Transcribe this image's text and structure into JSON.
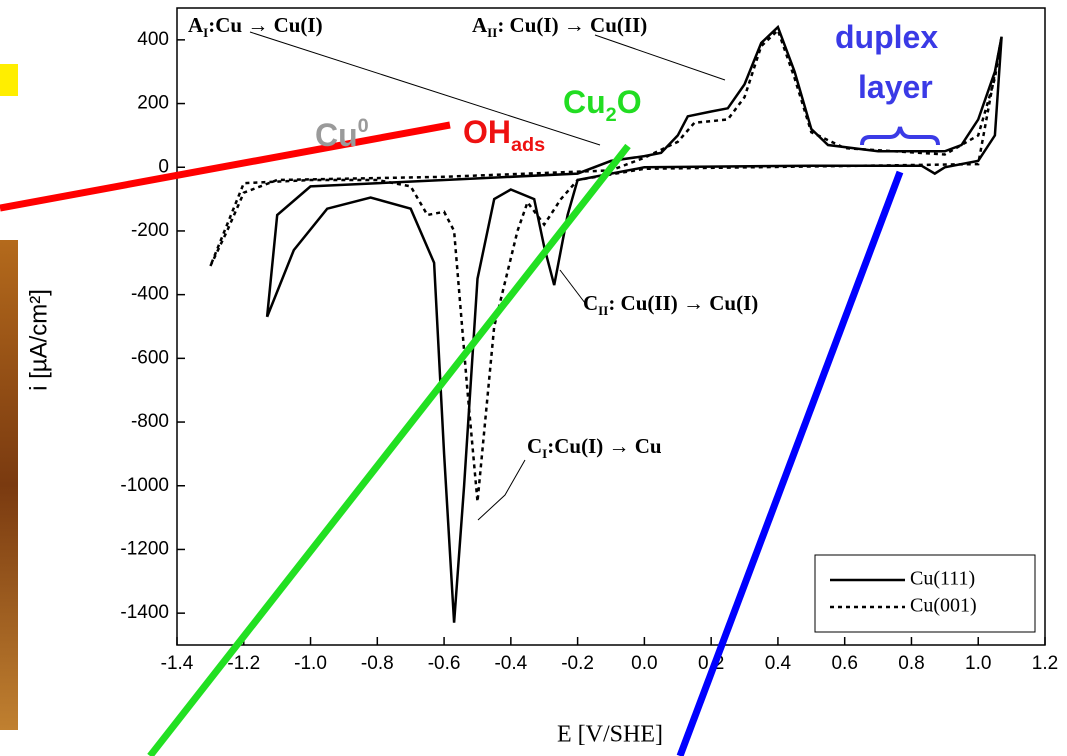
{
  "chart_data": {
    "type": "line",
    "x_label": "E [V/SHE]",
    "y_label": "i [µA/cm²]",
    "xlim": [
      -1.4,
      1.2
    ],
    "ylim": [
      -1500,
      500
    ],
    "xticks": [
      -1.4,
      -1.2,
      {
        "value": -1.0,
        "label": "-1.0"
      },
      -0.8,
      -0.6,
      -0.4,
      -0.2,
      {
        "value": 0,
        "label": "0.0"
      },
      0.2,
      0.4,
      0.6,
      0.8,
      {
        "value": 1.0,
        "label": "1.0"
      },
      1.2
    ],
    "yticks": [
      400,
      200,
      0,
      -200,
      -400,
      -600,
      -800,
      -1000,
      -1200,
      -1400
    ],
    "series": [
      {
        "name": "Cu(111)",
        "color": "#000000",
        "dash": "solid",
        "x": [
          -1.13,
          -1.1,
          -1.0,
          -0.6,
          -0.2,
          -0.1,
          0.0,
          0.05,
          0.1,
          0.13,
          0.2,
          0.25,
          0.3,
          0.35,
          0.4,
          0.45,
          0.5,
          0.55,
          0.7,
          0.9,
          0.95,
          1.0,
          1.05,
          1.07,
          1.05,
          1.0,
          0.9,
          0.87,
          0.83,
          0.5,
          0.0,
          -0.2,
          -0.23,
          -0.27,
          -0.3,
          -0.33,
          -0.4,
          -0.45,
          -0.5,
          -0.54,
          -0.57,
          -0.6,
          -0.63,
          -0.7,
          -0.82,
          -0.95,
          -1.05,
          -1.13
        ],
        "values": [
          -470,
          -150,
          -60,
          -40,
          -20,
          20,
          35,
          45,
          100,
          160,
          175,
          185,
          260,
          390,
          440,
          300,
          120,
          70,
          50,
          50,
          70,
          150,
          300,
          410,
          100,
          20,
          0,
          -20,
          5,
          5,
          0,
          -40,
          -150,
          -370,
          -250,
          -100,
          -70,
          -100,
          -350,
          -1000,
          -1430,
          -900,
          -300,
          -130,
          -95,
          -130,
          -260,
          -470
        ]
      },
      {
        "name": "Cu(001)",
        "color": "#000000",
        "dash": "dotted",
        "x": [
          -1.3,
          -1.25,
          -1.2,
          -1.1,
          -0.6,
          -0.1,
          0.0,
          0.1,
          0.15,
          0.25,
          0.3,
          0.35,
          0.4,
          0.45,
          0.5,
          0.6,
          0.9,
          1.0,
          1.05,
          1.07,
          1.0,
          0.0,
          -0.2,
          -0.25,
          -0.3,
          -0.35,
          -0.38,
          -0.45,
          -0.5,
          -0.53,
          -0.57,
          -0.6,
          -0.65,
          -0.7,
          -0.8,
          -1.0,
          -1.2,
          -1.3
        ],
        "values": [
          -310,
          -200,
          -80,
          -40,
          -30,
          -10,
          30,
          80,
          140,
          150,
          220,
          380,
          430,
          280,
          110,
          60,
          40,
          100,
          280,
          410,
          10,
          -5,
          -40,
          -100,
          -180,
          -110,
          -200,
          -500,
          -1050,
          -700,
          -200,
          -140,
          -150,
          -60,
          -40,
          -40,
          -50,
          -310
        ]
      }
    ],
    "annotations": [
      {
        "segments": [
          {
            "t": "A"
          },
          {
            "t": "I",
            "sub": true
          },
          {
            "t": ":Cu → Cu(I)"
          }
        ],
        "style": "ser"
      },
      {
        "segments": [
          {
            "t": "A"
          },
          {
            "t": "II",
            "sub": true
          },
          {
            "t": ": Cu(I) → Cu(II)"
          }
        ],
        "style": "ser"
      },
      {
        "segments": [
          {
            "t": "C"
          },
          {
            "t": "II",
            "sub": true
          },
          {
            "t": ": Cu(II) → Cu(I)"
          }
        ],
        "style": "ser"
      },
      {
        "segments": [
          {
            "t": "C"
          },
          {
            "t": "I",
            "sub": true
          },
          {
            "t": ":Cu(I) → Cu"
          }
        ],
        "style": "ser"
      },
      {
        "segments": [
          {
            "t": "Cu"
          },
          {
            "t": "0",
            "sup": true
          }
        ],
        "style": "big",
        "color": "#9a9a9a"
      },
      {
        "segments": [
          {
            "t": "OH"
          },
          {
            "t": "ads",
            "sub": true
          }
        ],
        "style": "big",
        "color": "#ee1111"
      },
      {
        "segments": [
          {
            "t": "Cu"
          },
          {
            "t": "2",
            "sub": true
          },
          {
            "t": "O"
          }
        ],
        "style": "big",
        "color": "#22dd22"
      },
      {
        "segments": [
          {
            "t": "duplex"
          }
        ],
        "style": "big",
        "color": "#3a3ae6"
      },
      {
        "segments": [
          {
            "t": "layer"
          }
        ],
        "style": "big",
        "color": "#3a3ae6"
      }
    ]
  }
}
